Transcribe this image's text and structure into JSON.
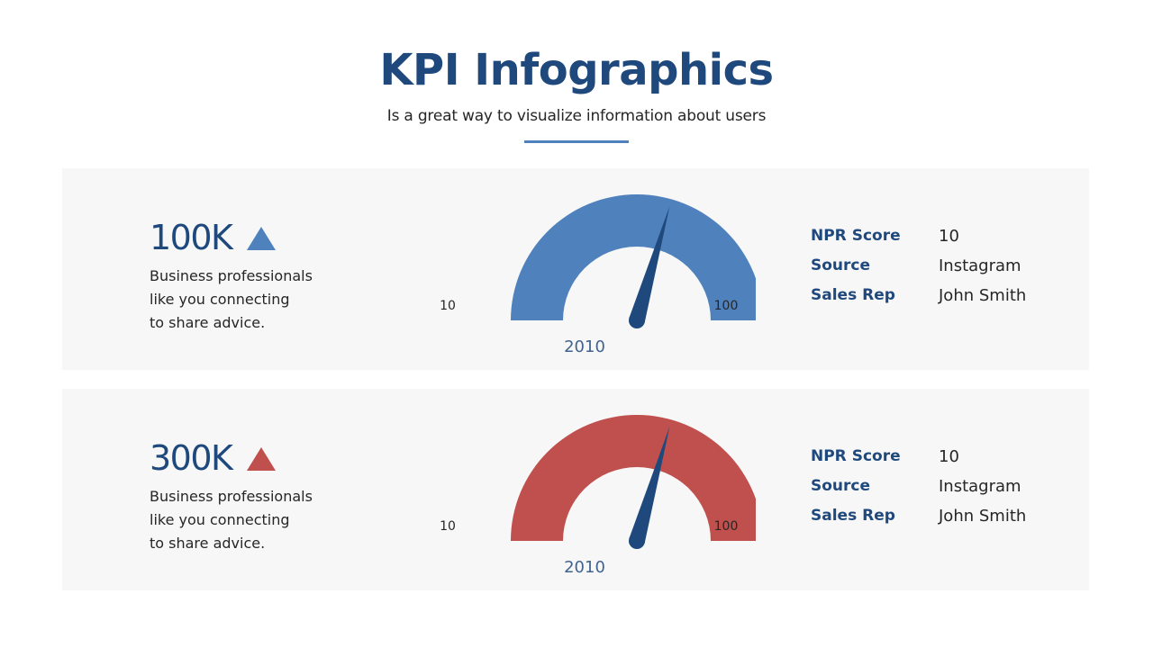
{
  "header": {
    "title": "KPI Infographics",
    "subtitle": "Is a great way to visualize information about users"
  },
  "colors": {
    "title": "#1f497d",
    "panel_background": "#f7f7f7",
    "needle": "#1f497d"
  },
  "kpis": [
    {
      "value": "100K",
      "trend_icon": "triangle-up-icon",
      "accent_color": "#4f81bd",
      "description_lines": [
        "Business professionals",
        "like you connecting",
        "to share advice."
      ],
      "gauge": {
        "min_label": "10",
        "max_label": "100",
        "year": "2010",
        "min": 10,
        "max": 100,
        "needle_value": 63
      },
      "stats": [
        {
          "label": "NPR Score",
          "value": "10"
        },
        {
          "label": "Source",
          "value": "Instagram"
        },
        {
          "label": "Sales Rep",
          "value": "John Smith"
        }
      ]
    },
    {
      "value": "300K",
      "trend_icon": "triangle-up-icon",
      "accent_color": "#c0504d",
      "description_lines": [
        "Business professionals",
        "like you connecting",
        "to share advice."
      ],
      "gauge": {
        "min_label": "10",
        "max_label": "100",
        "year": "2010",
        "min": 10,
        "max": 100,
        "needle_value": 63
      },
      "stats": [
        {
          "label": "NPR Score",
          "value": "10"
        },
        {
          "label": "Source",
          "value": "Instagram"
        },
        {
          "label": "Sales Rep",
          "value": "John Smith"
        }
      ]
    }
  ]
}
